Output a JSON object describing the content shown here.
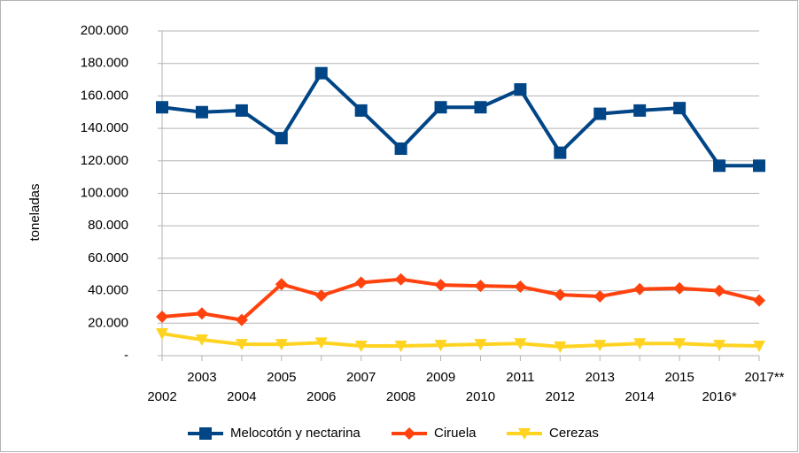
{
  "chart_data": {
    "type": "line",
    "y_label": "toneladas",
    "categories": [
      "2002",
      "2003",
      "2004",
      "2005",
      "2006",
      "2007",
      "2008",
      "2009",
      "2010",
      "2011",
      "2012",
      "2013",
      "2014",
      "2015",
      "2016*",
      "2017**"
    ],
    "series": [
      {
        "name": "Melocotón y nectarina",
        "color": "#004586",
        "marker": "square",
        "values": [
          153000,
          150000,
          151000,
          134000,
          174000,
          151000,
          127500,
          153000,
          153000,
          164000,
          125000,
          149000,
          151000,
          152500,
          117000,
          117000
        ]
      },
      {
        "name": "Ciruela",
        "color": "#ff420e",
        "marker": "diamond",
        "values": [
          24000,
          26000,
          22000,
          44000,
          37000,
          45000,
          47000,
          43500,
          43000,
          42500,
          37500,
          36500,
          41000,
          41500,
          40000,
          34000
        ]
      },
      {
        "name": "Cerezas",
        "color": "#ffd320",
        "marker": "triangle-down",
        "values": [
          13600,
          9800,
          7000,
          7000,
          8000,
          6000,
          6000,
          6500,
          7000,
          7500,
          5500,
          6500,
          7500,
          7500,
          6500,
          6000
        ]
      }
    ],
    "ylim": [
      0,
      200000
    ],
    "yticks": [
      {
        "value": 0,
        "label": "-"
      },
      {
        "value": 20000,
        "label": "20.000"
      },
      {
        "value": 40000,
        "label": "40.000"
      },
      {
        "value": 60000,
        "label": "60.000"
      },
      {
        "value": 80000,
        "label": "80.000"
      },
      {
        "value": 100000,
        "label": "100.000"
      },
      {
        "value": 120000,
        "label": "120.000"
      },
      {
        "value": 140000,
        "label": "140.000"
      },
      {
        "value": 160000,
        "label": "160.000"
      },
      {
        "value": 180000,
        "label": "180.000"
      },
      {
        "value": 200000,
        "label": "200.000"
      }
    ],
    "grid": true,
    "legend": "bottom"
  }
}
